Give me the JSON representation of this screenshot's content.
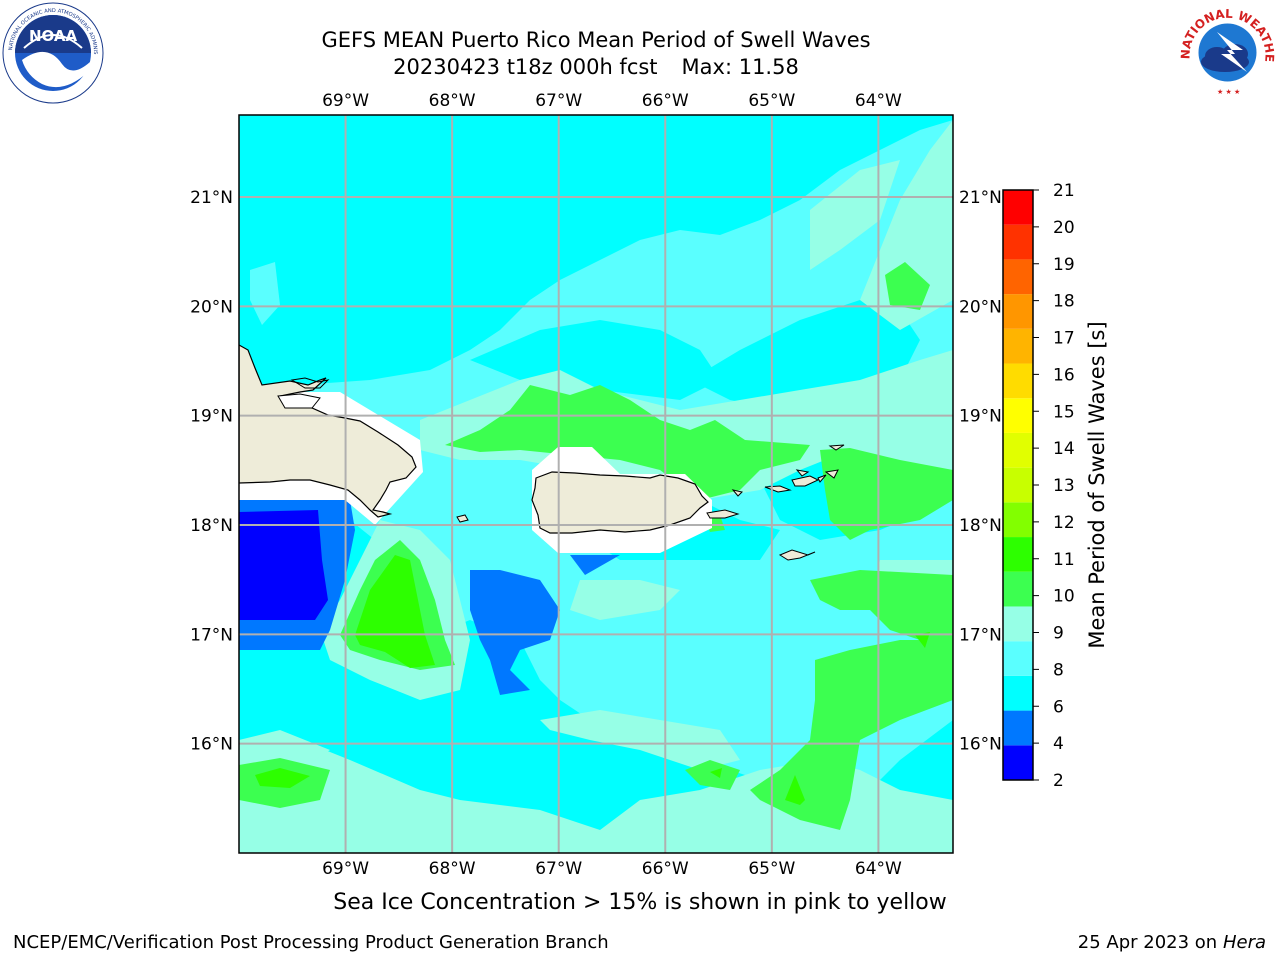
{
  "header": {
    "title_line1": "GEFS MEAN Puerto Rico Mean Period of Swell Waves",
    "title_date": "20230423 t18z 000h fcst",
    "title_max": "Max: 11.58"
  },
  "logos": {
    "left": {
      "name": "noaa-logo",
      "text": "NOAA",
      "ring_text": "NATIONAL OCEANIC AND ATMOSPHERIC ADMINISTRATION · U.S. DEPARTMENT OF COMMERCE"
    },
    "right": {
      "name": "nws-logo",
      "ring_text": "NATIONAL WEATHER SERVICE"
    }
  },
  "map": {
    "lon_labels": [
      "69°W",
      "68°W",
      "67°W",
      "66°W",
      "65°W",
      "64°W"
    ],
    "lat_labels": [
      "21°N",
      "20°N",
      "19°N",
      "18°N",
      "17°N",
      "16°N"
    ],
    "lon_range": [
      -70.0,
      -63.3
    ],
    "lat_range": [
      15.0,
      21.75
    ],
    "gridlines": true
  },
  "colorbar": {
    "label": "Mean Period of Swell Waves [s]",
    "ticks": [
      "21",
      "20",
      "19",
      "18",
      "17",
      "16",
      "15",
      "14",
      "13",
      "12",
      "11",
      "10",
      "9",
      "8",
      "6",
      "4",
      "2"
    ],
    "levels": [
      2,
      4,
      6,
      8,
      9,
      10,
      11,
      12,
      13,
      14,
      15,
      16,
      17,
      18,
      19,
      20,
      21
    ],
    "colors": [
      "#0000ff",
      "#0078ff",
      "#00ffff",
      "#5affff",
      "#96ffe6",
      "#3cff50",
      "#2dff00",
      "#82ff00",
      "#c8ff00",
      "#e1ff00",
      "#ffff00",
      "#ffdc00",
      "#ffb400",
      "#ff9600",
      "#ff6400",
      "#ff3200",
      "#ff0000"
    ]
  },
  "palette": {
    "land": "#eeecd9",
    "ocean_base": "#00ffff",
    "band_8_9": "#5affff",
    "band_9_10": "#96ffe6",
    "band_10_11": "#3cff50",
    "band_11_12": "#2dff00",
    "band_4_6": "#0078ff",
    "band_2_4": "#0000ff",
    "grid": "#b0b0b0"
  },
  "footer": {
    "note": "Sea Ice Concentration > 15% is shown in pink to yellow",
    "left": "NCEP/EMC/Verification Post Processing Product Generation Branch",
    "right_prefix": "25 Apr 2023 on ",
    "right_host": "Hera"
  }
}
